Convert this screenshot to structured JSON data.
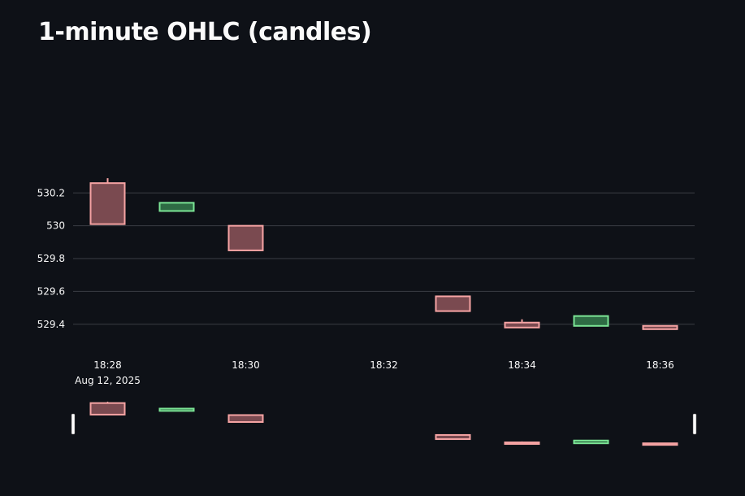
{
  "page": {
    "title": "1-minute OHLC (candles)"
  },
  "colors": {
    "background": "#0e1117",
    "grid": "#3a3d44",
    "increasing": "#7be495",
    "increasing_fill": "#2e6b44",
    "decreasing": "#f5a3a3",
    "decreasing_fill": "#7a4a50",
    "text": "#fafafa"
  },
  "chart_data": {
    "type": "candlestick",
    "title": "1-minute OHLC (candles)",
    "x_date_label": "Aug 12, 2025",
    "x": [
      "18:28",
      "18:29",
      "18:30",
      "18:33",
      "18:34",
      "18:35",
      "18:36"
    ],
    "open": [
      530.26,
      530.09,
      530.0,
      529.57,
      529.41,
      529.39,
      529.39
    ],
    "high": [
      530.29,
      530.14,
      530.0,
      529.57,
      529.43,
      529.45,
      529.39
    ],
    "low": [
      530.01,
      530.09,
      529.85,
      529.48,
      529.38,
      529.39,
      529.37
    ],
    "close": [
      530.01,
      530.14,
      529.85,
      529.48,
      529.38,
      529.45,
      529.37
    ],
    "x_ticks": [
      "18:28",
      "18:30",
      "18:32",
      "18:34",
      "18:36"
    ],
    "y_ticks": [
      "529.4",
      "529.6",
      "529.8",
      "530",
      "530.2"
    ],
    "y_tick_values": [
      529.4,
      529.6,
      529.8,
      530.0,
      530.2
    ],
    "x_range": [
      "18:27.5",
      "18:36.5"
    ],
    "y_range": [
      529.27,
      530.36
    ],
    "grid": true,
    "range_slider": true
  }
}
